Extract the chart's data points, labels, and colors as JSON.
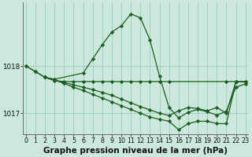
{
  "background_color": "#cce8dc",
  "grid_color": "#99ccbb",
  "line_color": "#1a5e20",
  "title": "Graphe pression niveau de la mer (hPa)",
  "xlim": [
    -0.3,
    23.3
  ],
  "ylim": [
    1016.55,
    1019.35
  ],
  "series": [
    {
      "x": [
        0,
        1,
        2,
        3,
        6,
        7,
        8,
        9,
        10,
        11,
        12,
        13,
        14,
        15,
        16,
        17,
        18,
        19,
        20,
        21,
        22,
        23
      ],
      "y": [
        1018.0,
        1017.88,
        1017.76,
        1017.72,
        1017.85,
        1018.15,
        1018.45,
        1018.72,
        1018.85,
        1019.1,
        1019.02,
        1018.55,
        1017.78,
        1017.12,
        1016.9,
        1017.02,
        1017.08,
        1017.03,
        1016.96,
        1017.04,
        1017.55,
        1017.62
      ]
    },
    {
      "x": [
        0,
        1,
        2,
        3,
        4,
        5,
        6,
        7,
        8,
        9,
        10,
        11,
        12,
        13,
        14,
        15,
        21,
        22,
        23
      ],
      "y": [
        1018.0,
        1017.88,
        1017.76,
        1017.69,
        1017.67,
        1017.67,
        1017.67,
        1017.67,
        1017.67,
        1017.67,
        1017.67,
        1017.67,
        1017.67,
        1017.67,
        1017.67,
        1017.67,
        1017.67,
        1017.67,
        1017.67
      ]
    },
    {
      "x": [
        2,
        3,
        4,
        5,
        6,
        7,
        8,
        9,
        10,
        11,
        12,
        13,
        14,
        15,
        16,
        17,
        18,
        19,
        20,
        21,
        22,
        23
      ],
      "y": [
        1017.76,
        1017.7,
        1017.65,
        1017.6,
        1017.55,
        1017.5,
        1017.44,
        1017.38,
        1017.3,
        1017.22,
        1017.14,
        1017.07,
        1017.0,
        1016.95,
        1017.05,
        1017.12,
        1017.1,
        1017.05,
        1017.12,
        1017.0,
        1017.67,
        1017.67
      ]
    },
    {
      "x": [
        2,
        3,
        4,
        5,
        6,
        7,
        8,
        9,
        10,
        11,
        12,
        13,
        14,
        15,
        16,
        17,
        18,
        19,
        20,
        21,
        22,
        23
      ],
      "y": [
        1017.76,
        1017.7,
        1017.63,
        1017.55,
        1017.48,
        1017.4,
        1017.32,
        1017.24,
        1017.16,
        1017.08,
        1017.0,
        1016.92,
        1016.87,
        1016.83,
        1016.65,
        1016.78,
        1016.83,
        1016.83,
        1016.78,
        1016.78,
        1017.67,
        1017.67
      ]
    }
  ],
  "marker": "D",
  "marker_size": 2.2,
  "linewidth": 0.9,
  "xlabel_ticks": [
    0,
    1,
    2,
    3,
    4,
    5,
    6,
    7,
    8,
    9,
    10,
    11,
    12,
    13,
    14,
    15,
    16,
    17,
    18,
    19,
    20,
    21,
    22,
    23
  ],
  "yticks": [
    1017,
    1018
  ],
  "title_fontsize": 7.5,
  "tick_fontsize": 5.8
}
